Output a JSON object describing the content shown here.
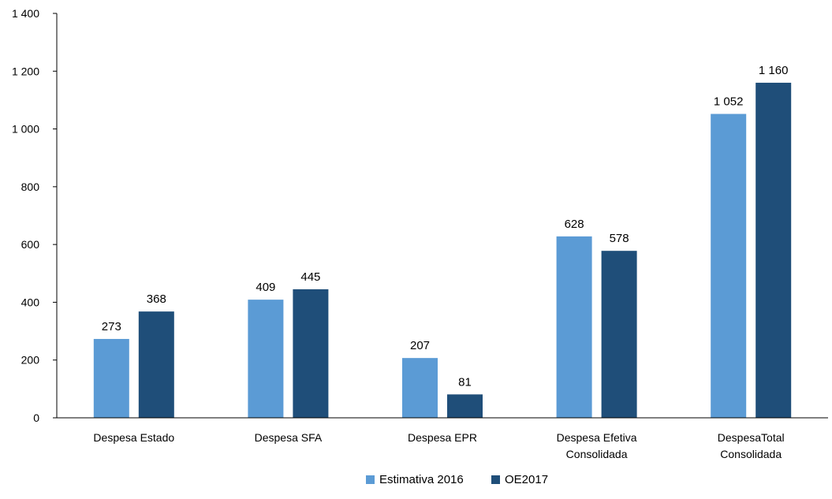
{
  "chart_data": {
    "type": "bar",
    "categories": [
      [
        "Despesa Estado"
      ],
      [
        "Despesa SFA"
      ],
      [
        "Despesa EPR"
      ],
      [
        "Despesa Efetiva",
        "Consolidada"
      ],
      [
        "DespesaTotal",
        "Consolidada"
      ]
    ],
    "series": [
      {
        "name": "Estimativa 2016",
        "color": "#5b9bd5",
        "values": [
          273,
          409,
          207,
          628,
          1052
        ],
        "labels": [
          "273",
          "409",
          "207",
          "628",
          "1 052"
        ]
      },
      {
        "name": "OE2017",
        "color": "#1f4e79",
        "values": [
          368,
          445,
          81,
          578,
          1160
        ],
        "labels": [
          "368",
          "445",
          "81",
          "578",
          "1 160"
        ]
      }
    ],
    "ylim": [
      0,
      1400
    ],
    "yticks": [
      0,
      200,
      400,
      600,
      800,
      1000,
      1200,
      1400
    ],
    "ytick_labels": [
      "0",
      "200",
      "400",
      "600",
      "800",
      "1 000",
      "1 200",
      "1 400"
    ],
    "title": "",
    "xlabel": "",
    "ylabel": "",
    "grid": false,
    "legend_position": "bottom-center"
  }
}
